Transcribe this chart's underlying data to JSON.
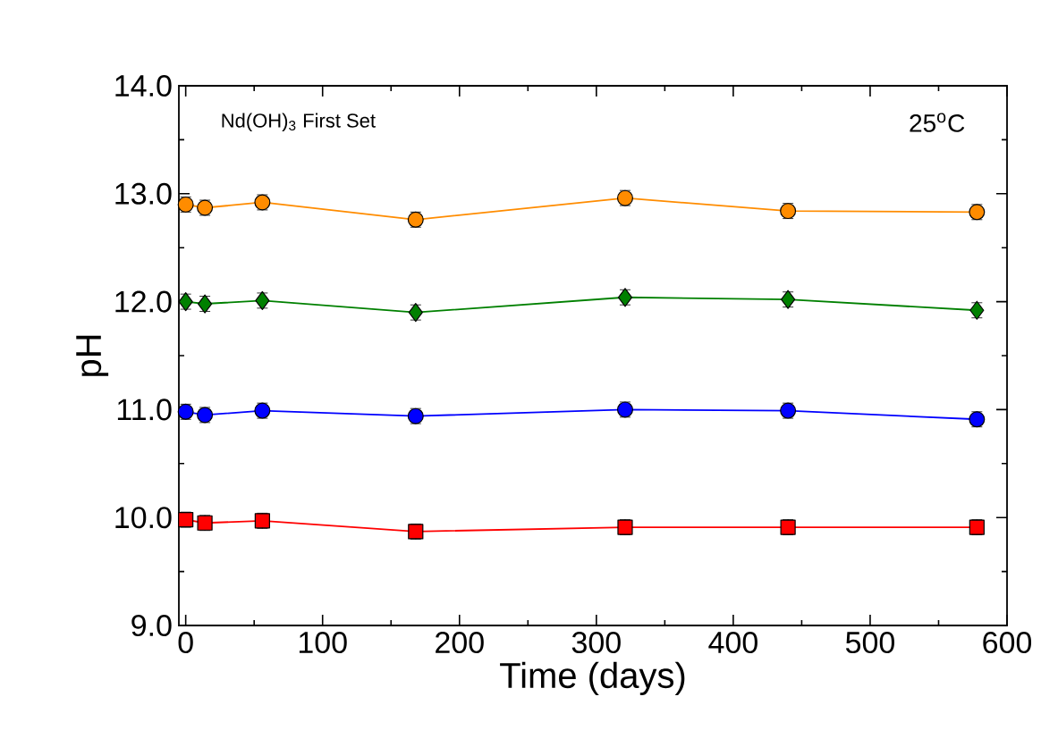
{
  "chart_data": {
    "type": "line",
    "xlabel": "Time (days)",
    "ylabel": "pH",
    "annotations": [
      "Nd(OH)$_{3}$ First Set",
      "25$^{o}$C"
    ],
    "x": [
      0,
      14,
      56,
      168,
      321,
      440,
      578
    ],
    "series": [
      {
        "color": "#ff8c00",
        "marker": "circle",
        "values": [
          12.9,
          12.87,
          12.92,
          12.76,
          12.96,
          12.84,
          12.83
        ],
        "errors": [
          0.07,
          0.07,
          0.07,
          0.07,
          0.07,
          0.07,
          0.07
        ]
      },
      {
        "color": "#008000",
        "marker": "diamond",
        "values": [
          12.0,
          11.98,
          12.01,
          11.9,
          12.04,
          12.02,
          11.92
        ],
        "errors": [
          0.07,
          0.07,
          0.07,
          0.07,
          0.07,
          0.07,
          0.07
        ]
      },
      {
        "color": "#0000ff",
        "marker": "circle",
        "values": [
          10.98,
          10.95,
          10.99,
          10.94,
          11.0,
          10.99,
          10.91
        ],
        "errors": [
          0.07,
          0.07,
          0.07,
          0.07,
          0.07,
          0.07,
          0.07
        ]
      },
      {
        "color": "#ff0000",
        "marker": "square",
        "values": [
          9.98,
          9.95,
          9.97,
          9.87,
          9.91,
          9.91,
          9.91
        ],
        "errors": [
          0.07,
          0.07,
          0.07,
          0.07,
          0.07,
          0.07,
          0.07
        ]
      }
    ],
    "xlim": [
      -5,
      600
    ],
    "xticks": [
      0,
      100,
      200,
      300,
      400,
      500,
      600
    ],
    "ylim": [
      9,
      14
    ],
    "yticks": [
      {
        "value": 9,
        "label": "9.0"
      },
      {
        "value": 10,
        "label": "10.0"
      },
      {
        "value": 11,
        "label": "11.0"
      },
      {
        "value": 12,
        "label": "12.0"
      },
      {
        "value": 13,
        "label": "13.0"
      },
      {
        "value": 14,
        "label": "14.0"
      }
    ],
    "line_style": "solid"
  }
}
